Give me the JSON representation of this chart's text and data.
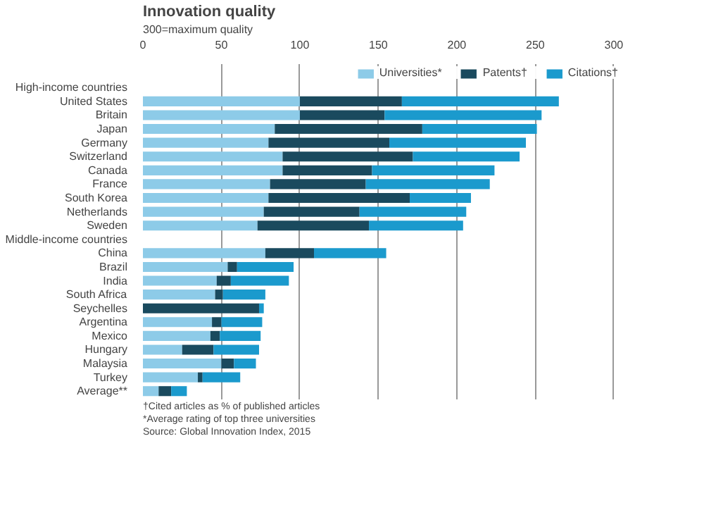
{
  "chart_data": {
    "type": "bar",
    "orientation": "horizontal",
    "stacked": true,
    "title": "Innovation quality",
    "subtitle": "300=maximum quality",
    "categories": [
      "High-income countries",
      "United States",
      "Britain",
      "Japan",
      "Germany",
      "Switzerland",
      "Canada",
      "France",
      "South Korea",
      "Netherlands",
      "Sweden",
      "Middle-income countries",
      "China",
      "Brazil",
      "India",
      "South Africa",
      "Seychelles",
      "Argentina",
      "Mexico",
      "Hungary",
      "Malaysia",
      "Turkey",
      "Average**"
    ],
    "series": [
      {
        "name": "Universities*",
        "color": "#8dcbe8",
        "values": [
          null,
          100,
          100,
          84,
          80,
          89,
          89,
          81,
          80,
          77,
          73,
          null,
          78,
          54,
          47,
          46,
          0,
          44,
          43,
          25,
          50,
          35,
          10
        ]
      },
      {
        "name": "Patents†",
        "color": "#1a4a5e",
        "values": [
          null,
          65,
          54,
          94,
          77,
          83,
          57,
          61,
          90,
          61,
          71,
          null,
          31,
          6,
          9,
          5,
          74,
          6,
          6,
          20,
          8,
          3,
          8
        ]
      },
      {
        "name": "Citations†",
        "color": "#1b9acd",
        "values": [
          null,
          100,
          100,
          73,
          87,
          68,
          78,
          79,
          39,
          68,
          60,
          null,
          46,
          36,
          37,
          27,
          3,
          26,
          26,
          29,
          14,
          24,
          10
        ]
      }
    ],
    "xlim": [
      0,
      305
    ],
    "xticks": [
      0,
      50,
      100,
      150,
      200,
      250,
      300
    ],
    "grid": "x",
    "legend": "top",
    "annotations": [
      "Source: Global Innovation Index, 2015",
      "*Average rating of top three universities",
      "†Cited articles as % of published articles"
    ]
  }
}
